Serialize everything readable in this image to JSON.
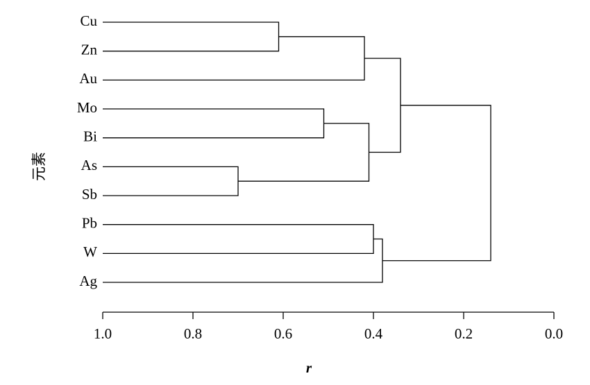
{
  "chart_data": {
    "type": "dendrogram",
    "x_label": "r",
    "y_label": "元素",
    "xlim": [
      1.0,
      0.0
    ],
    "xticks": [
      {
        "value": 1.0,
        "label": "1.0"
      },
      {
        "value": 0.8,
        "label": "0.8"
      },
      {
        "value": 0.6,
        "label": "0.6"
      },
      {
        "value": 0.4,
        "label": "0.4"
      },
      {
        "value": 0.2,
        "label": "0.2"
      },
      {
        "value": 0.0,
        "label": "0.0"
      }
    ],
    "tree": {
      "height": 0.14,
      "children": [
        {
          "height": 0.34,
          "children": [
            {
              "height": 0.42,
              "children": [
                {
                  "height": 0.61,
                  "children": [
                    "Cu",
                    "Zn"
                  ]
                },
                "Au"
              ]
            },
            {
              "height": 0.41,
              "children": [
                {
                  "height": 0.51,
                  "children": [
                    "Mo",
                    "Bi"
                  ]
                },
                {
                  "height": 0.7,
                  "children": [
                    "As",
                    "Sb"
                  ]
                }
              ]
            }
          ]
        },
        {
          "height": 0.38,
          "children": [
            {
              "height": 0.4,
              "children": [
                "Pb",
                "W"
              ]
            },
            "Ag"
          ]
        }
      ]
    }
  }
}
